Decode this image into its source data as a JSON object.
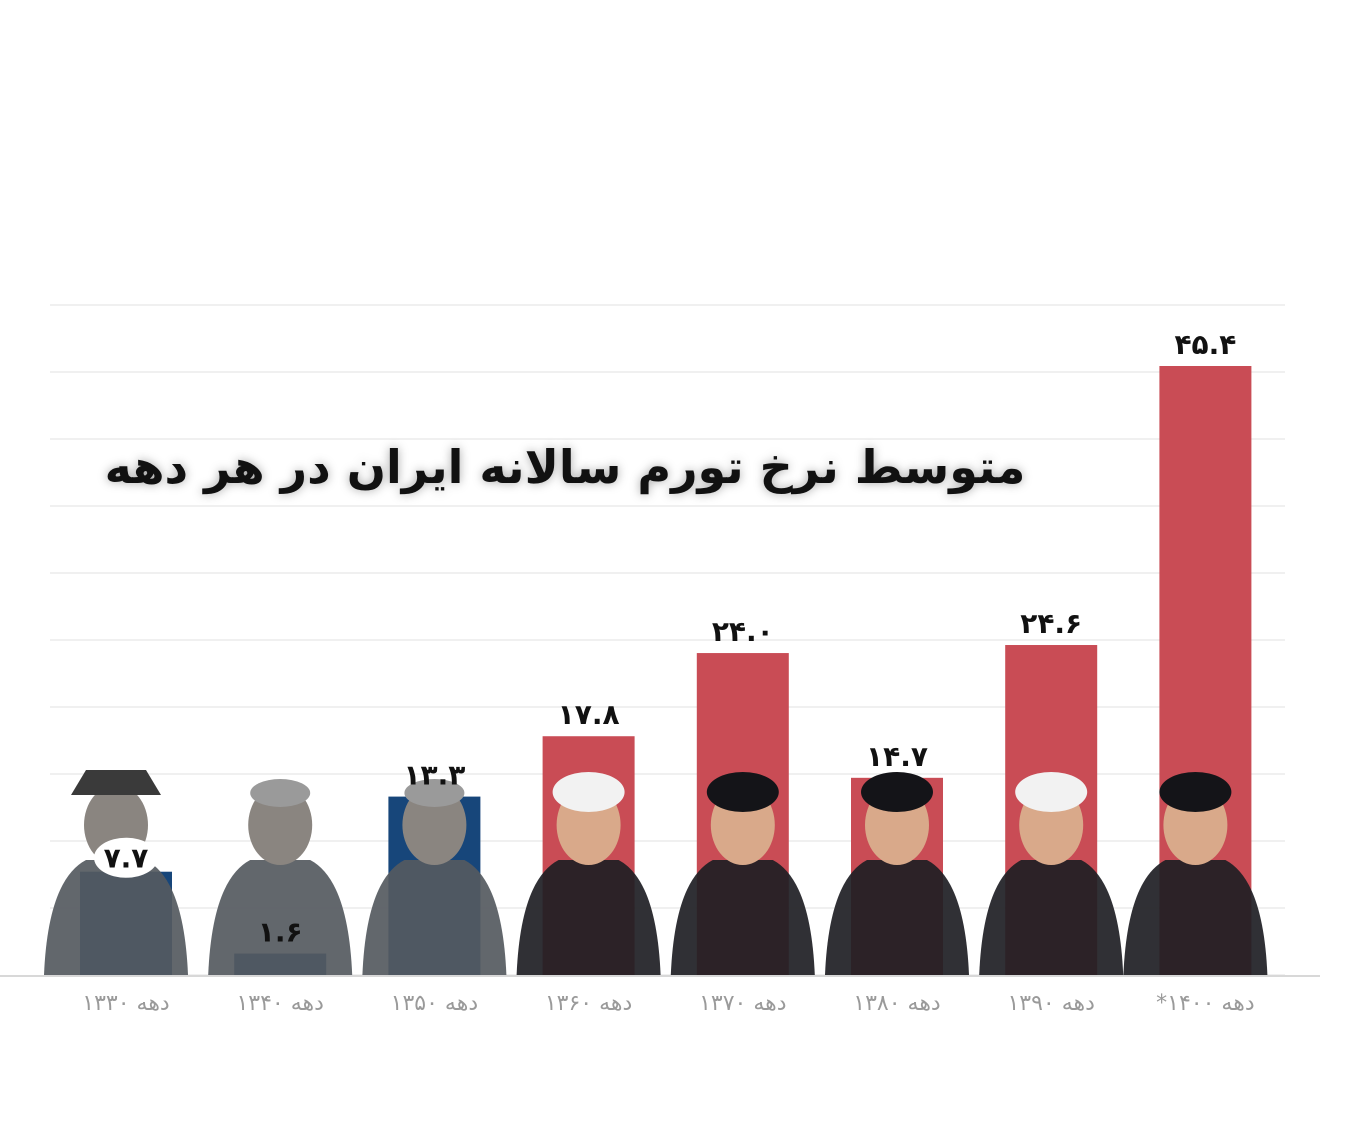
{
  "colors": {
    "pre_revolution": "#17467a",
    "post_revolution": "#c94c55",
    "grid": "#ececec",
    "axis_label": "#9a9a9a",
    "value_label": "#111111"
  },
  "chart_data": {
    "type": "bar",
    "title": "متوسط نرخ تورم سالانه ایران در هر دهه",
    "xlabel": "",
    "ylabel": "",
    "ylim": [
      0,
      50
    ],
    "grid": true,
    "categories": [
      "دهه ۱۳۳۰",
      "دهه ۱۳۴۰",
      "دهه ۱۳۵۰",
      "دهه ۱۳۶۰",
      "دهه ۱۳۷۰",
      "دهه ۱۳۸۰",
      "دهه ۱۳۹۰",
      "دهه ۱۴۰۰*"
    ],
    "values": [
      7.7,
      1.6,
      13.3,
      17.8,
      24.0,
      14.7,
      24.6,
      45.4
    ],
    "value_labels": [
      "۷.۷",
      "۱.۶",
      "۱۳.۳",
      "۱۷.۸",
      "۲۴.۰",
      "۱۴.۷",
      "۲۴.۶",
      "۴۵.۴"
    ],
    "bar_colors": [
      "#17467a",
      "#17467a",
      "#17467a",
      "#c94c55",
      "#c94c55",
      "#c94c55",
      "#c94c55",
      "#c94c55"
    ]
  }
}
